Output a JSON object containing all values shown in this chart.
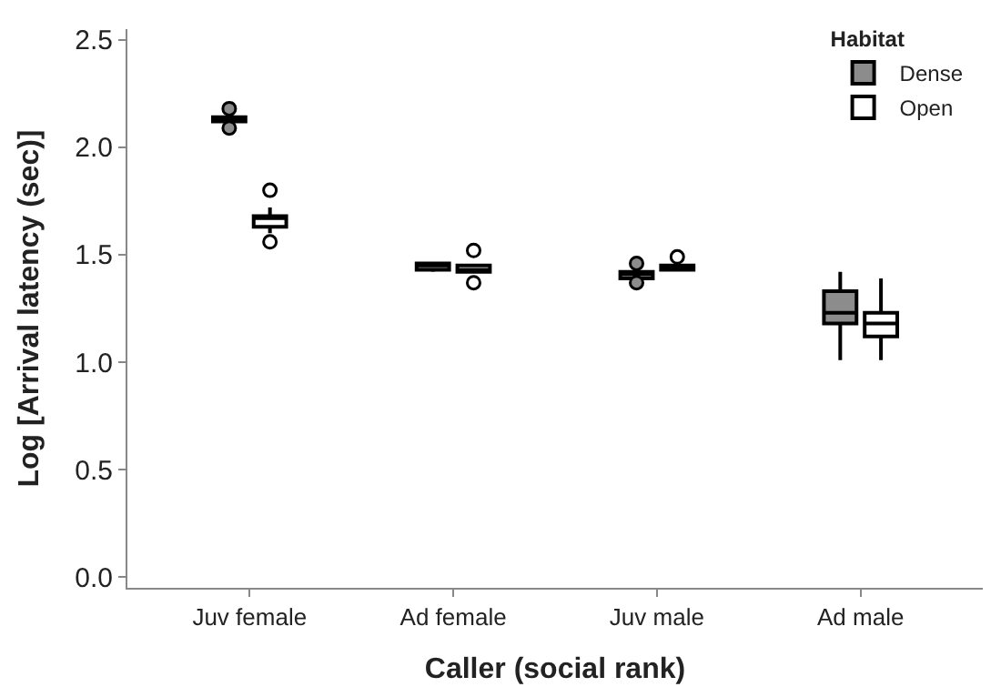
{
  "chart_data": {
    "type": "box",
    "xlabel": "Caller (social rank)",
    "ylabel": "Log [Arrival latency (sec)]",
    "legend_title": "Habitat",
    "legend": "top right",
    "categories": [
      "Juv female",
      "Ad female",
      "Juv male",
      "Ad male"
    ],
    "ylim": [
      -0.05,
      2.55
    ],
    "yticks": [
      {
        "value": 0,
        "label": "0.0"
      },
      0.5,
      {
        "value": 1,
        "label": "1.0"
      },
      1.5,
      {
        "value": 2,
        "label": "2.0"
      },
      2.5
    ],
    "series": [
      {
        "name": "Dense",
        "color": "#8c8c8c",
        "boxes": [
          {
            "low": 2.12,
            "q1": 2.12,
            "median": 2.13,
            "q3": 2.14,
            "high": 2.14,
            "outliers": [
              2.18,
              2.09
            ]
          },
          {
            "low": 1.42,
            "q1": 1.43,
            "median": 1.45,
            "q3": 1.46,
            "high": 1.46
          },
          {
            "low": 1.39,
            "q1": 1.39,
            "median": 1.41,
            "q3": 1.42,
            "high": 1.42,
            "outliers": [
              1.46,
              1.37
            ]
          },
          {
            "low": 1.01,
            "q1": 1.18,
            "median": 1.23,
            "q3": 1.33,
            "high": 1.42
          }
        ]
      },
      {
        "name": "Open",
        "color": "#ffffff",
        "boxes": [
          {
            "low": 1.6,
            "q1": 1.63,
            "median": 1.67,
            "q3": 1.68,
            "high": 1.72,
            "outliers": [
              1.8,
              1.56
            ]
          },
          {
            "low": 1.42,
            "q1": 1.42,
            "median": 1.43,
            "q3": 1.45,
            "high": 1.45,
            "outliers": [
              1.52,
              1.37
            ]
          },
          {
            "low": 1.43,
            "q1": 1.43,
            "median": 1.44,
            "q3": 1.45,
            "high": 1.45,
            "outliers": [
              1.49
            ]
          },
          {
            "low": 1.01,
            "q1": 1.12,
            "median": 1.18,
            "q3": 1.23,
            "high": 1.39
          }
        ]
      }
    ]
  }
}
